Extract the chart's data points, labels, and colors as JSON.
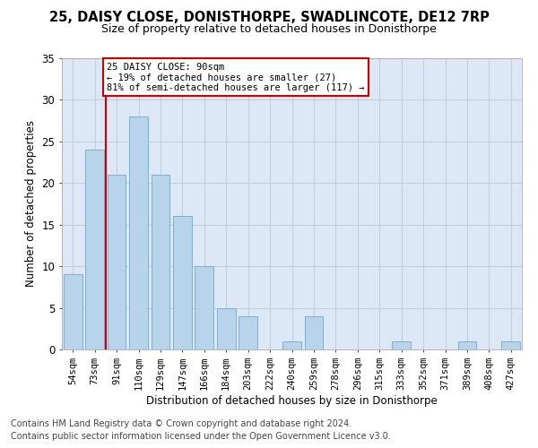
{
  "title1": "25, DAISY CLOSE, DONISTHORPE, SWADLINCOTE, DE12 7RP",
  "title2": "Size of property relative to detached houses in Donisthorpe",
  "xlabel": "Distribution of detached houses by size in Donisthorpe",
  "ylabel": "Number of detached properties",
  "categories": [
    "54sqm",
    "73sqm",
    "91sqm",
    "110sqm",
    "129sqm",
    "147sqm",
    "166sqm",
    "184sqm",
    "203sqm",
    "222sqm",
    "240sqm",
    "259sqm",
    "278sqm",
    "296sqm",
    "315sqm",
    "333sqm",
    "352sqm",
    "371sqm",
    "389sqm",
    "408sqm",
    "427sqm"
  ],
  "values": [
    9,
    24,
    21,
    28,
    21,
    16,
    10,
    5,
    4,
    0,
    1,
    4,
    0,
    0,
    0,
    1,
    0,
    0,
    1,
    0,
    1
  ],
  "bar_color": "#b8d4ea",
  "bar_edge_color": "#7bafd4",
  "vline_color": "#cc0000",
  "vline_x": 1.5,
  "annotation_line1": "25 DAISY CLOSE: 90sqm",
  "annotation_line2": "← 19% of detached houses are smaller (27)",
  "annotation_line3": "81% of semi-detached houses are larger (117) →",
  "annotation_box_edge_color": "#cc0000",
  "ylim_max": 35,
  "yticks": [
    0,
    5,
    10,
    15,
    20,
    25,
    30,
    35
  ],
  "grid_color": "#c0ccd8",
  "bg_color": "#dce8f5",
  "footer1": "Contains HM Land Registry data © Crown copyright and database right 2024.",
  "footer2": "Contains public sector information licensed under the Open Government Licence v3.0.",
  "title1_fontsize": 10.5,
  "title2_fontsize": 9,
  "axis_label_fontsize": 8.5,
  "tick_fontsize": 7.5,
  "annotation_fontsize": 7.5,
  "footer_fontsize": 7
}
